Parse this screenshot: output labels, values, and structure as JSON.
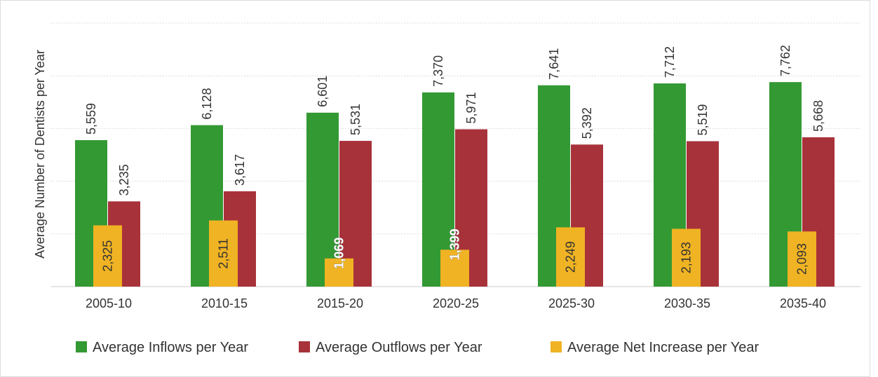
{
  "chart_data": {
    "type": "bar",
    "y_label": "Average Number of Dentists per Year",
    "categories": [
      "2005-10",
      "2010-15",
      "2015-20",
      "2020-25",
      "2025-30",
      "2030-35",
      "2035-40"
    ],
    "series": [
      {
        "name": "Average Inflows per Year",
        "color": "#339933",
        "values": [
          5559,
          6128,
          6601,
          7370,
          7641,
          7712,
          7762
        ],
        "value_labels": [
          "5,559",
          "6,128",
          "6,601",
          "7,370",
          "7,641",
          "7,712",
          "7,762"
        ]
      },
      {
        "name": "Average Outflows per Year",
        "color": "#a8323a",
        "values": [
          3235,
          3617,
          5531,
          5971,
          5392,
          5519,
          5668
        ],
        "value_labels": [
          "3,235",
          "3,617",
          "5,531",
          "5,971",
          "5,392",
          "5,519",
          "5,668"
        ]
      },
      {
        "name": "Average Net Increase per Year",
        "color": "#f0b323",
        "values": [
          2325,
          2511,
          1069,
          1399,
          2249,
          2193,
          2093
        ],
        "value_labels": [
          "2,325",
          "2,511",
          "1,069",
          "1,399",
          "2,249",
          "2,193",
          "2,093"
        ]
      }
    ],
    "ylim": [
      0,
      10000
    ],
    "yticks": [
      0,
      2000,
      4000,
      6000,
      8000,
      10000
    ],
    "grid": true
  }
}
